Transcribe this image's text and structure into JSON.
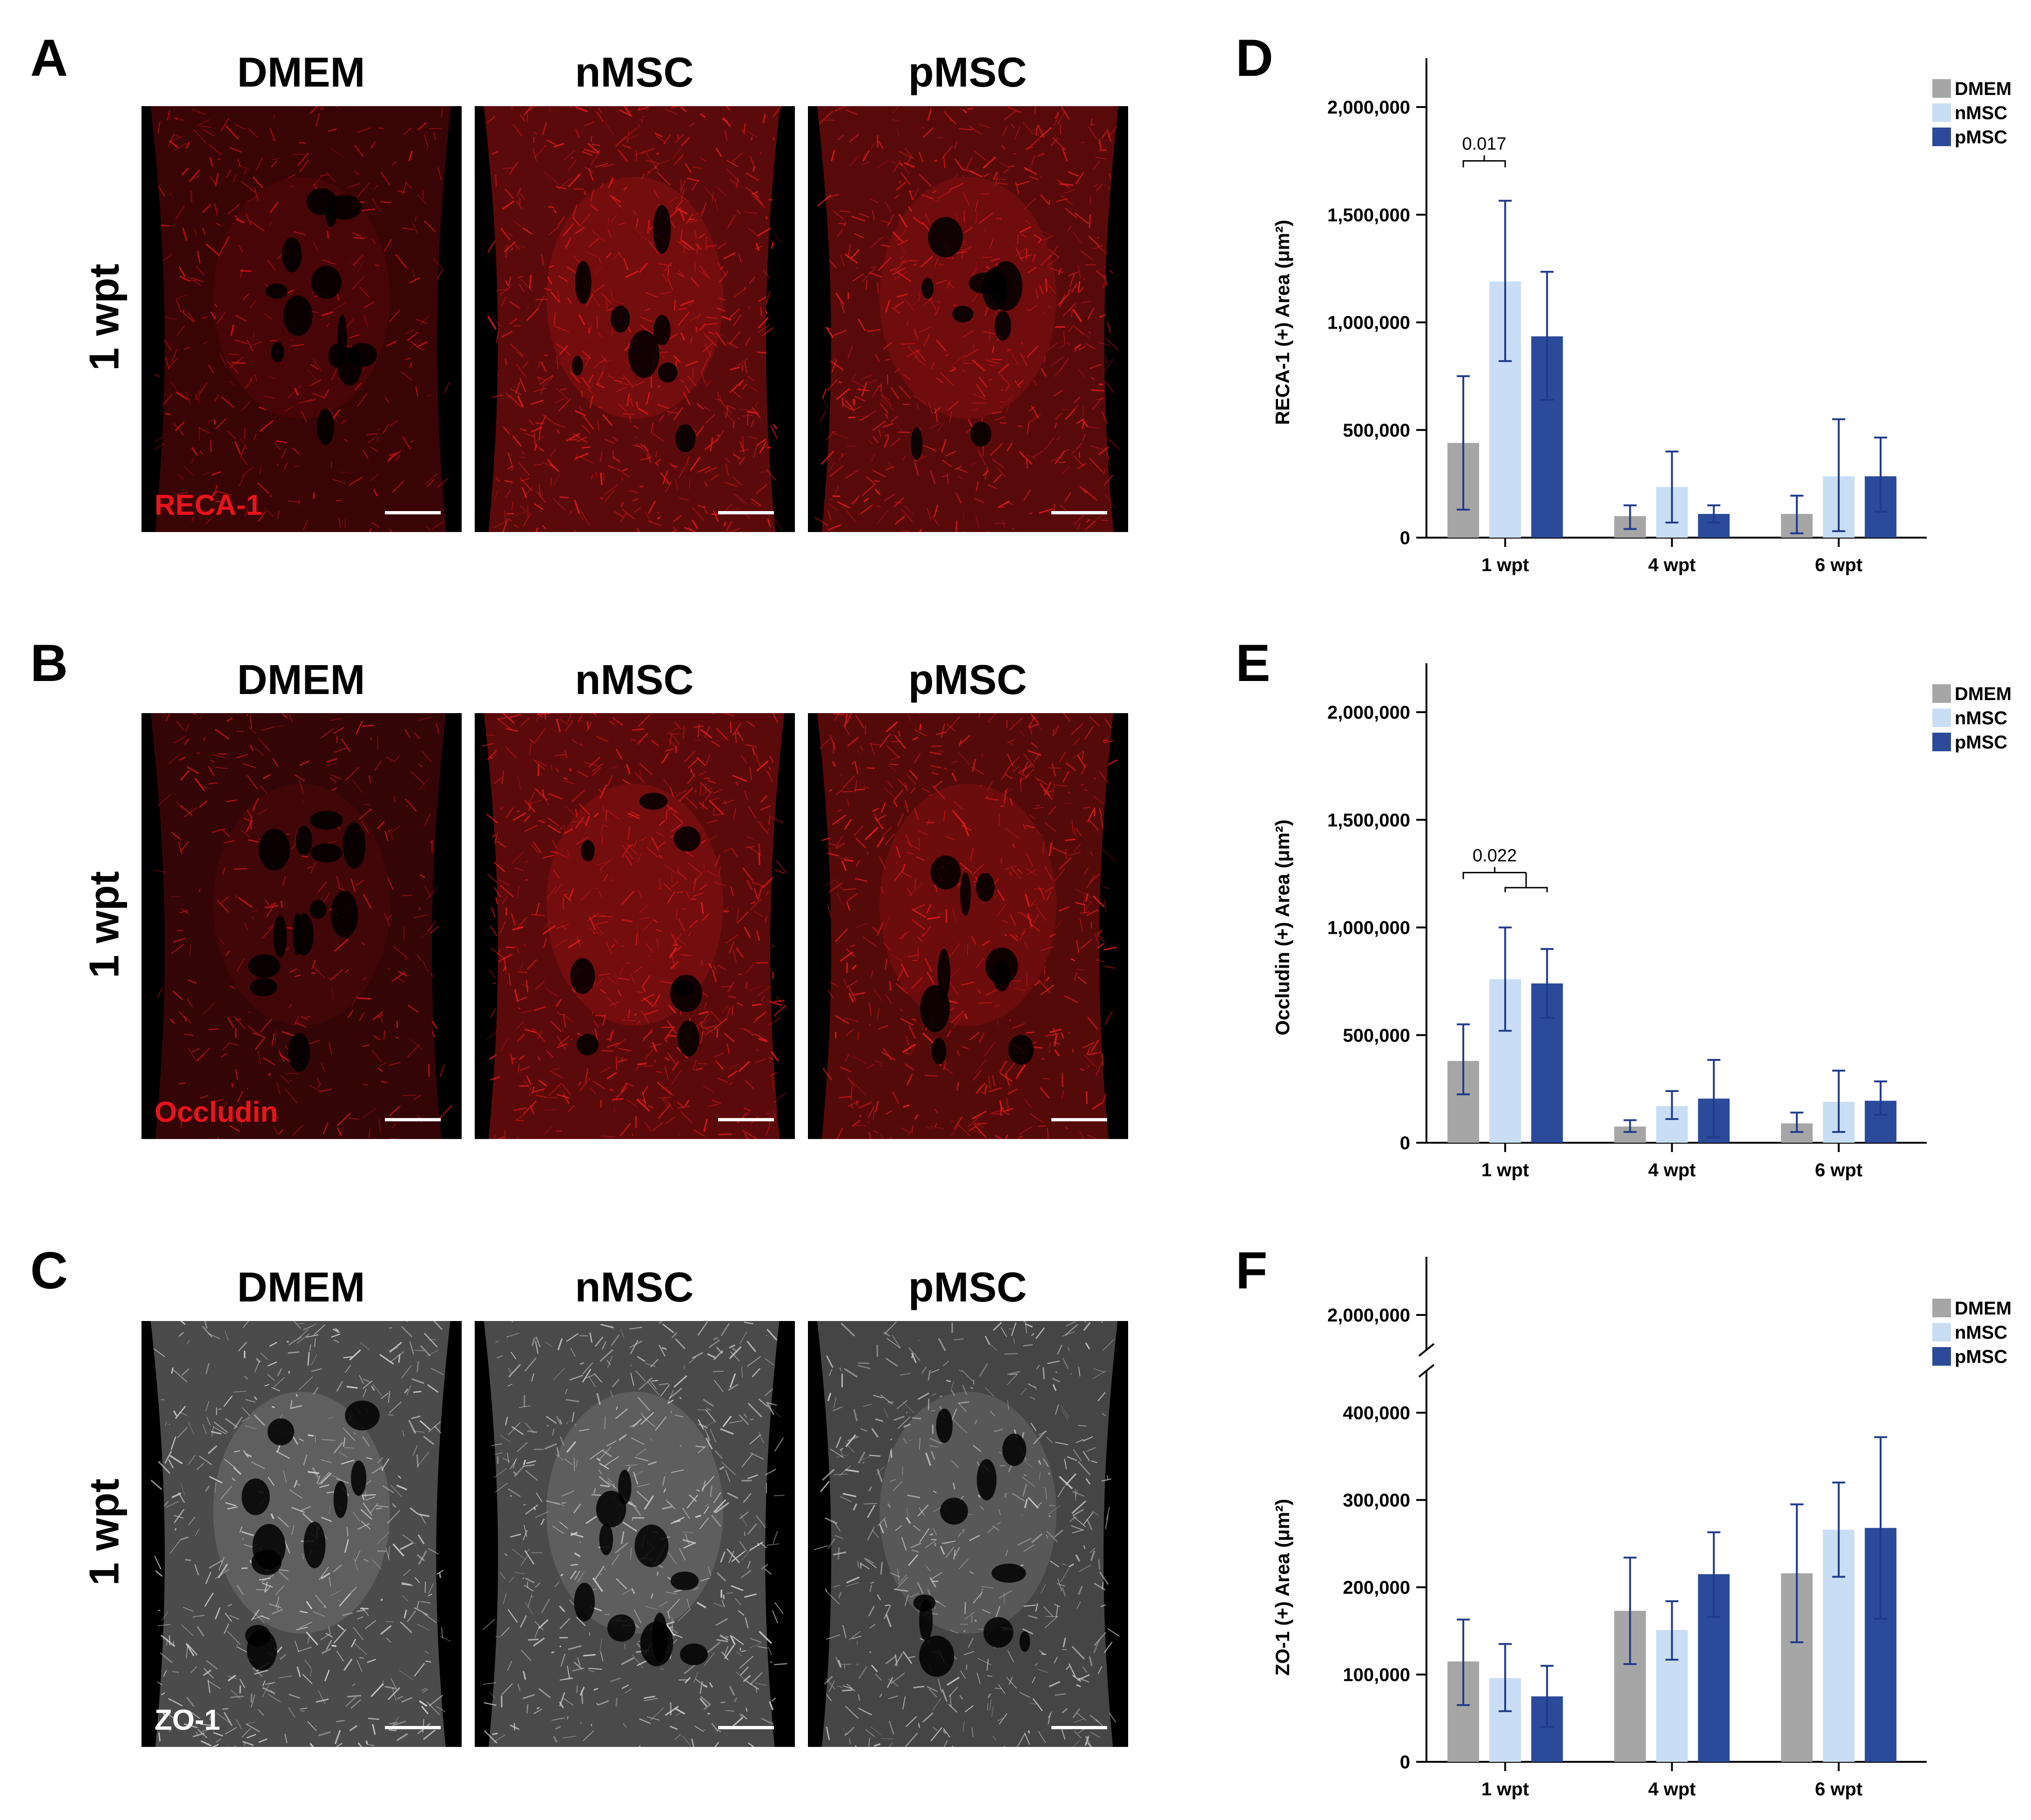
{
  "left_panels": [
    {
      "letter": "A",
      "columns": [
        "DMEM",
        "nMSC",
        "pMSC"
      ],
      "row_label": "1 wpt",
      "stain": "RECA-1",
      "stain_color": "#e8141a",
      "images": [
        {
          "group": "DMEM",
          "signal_color": "#d01016",
          "density": 0.55
        },
        {
          "group": "nMSC",
          "signal_color": "#e41a1c",
          "density": 1.0
        },
        {
          "group": "pMSC",
          "signal_color": "#e41a1c",
          "density": 0.95
        }
      ]
    },
    {
      "letter": "B",
      "columns": [
        "DMEM",
        "nMSC",
        "pMSC"
      ],
      "row_label": "1 wpt",
      "stain": "Occludin",
      "stain_color": "#e8141a",
      "images": [
        {
          "group": "DMEM",
          "signal_color": "#c8141a",
          "density": 0.5
        },
        {
          "group": "nMSC",
          "signal_color": "#e41a1c",
          "density": 1.0
        },
        {
          "group": "pMSC",
          "signal_color": "#e41a1c",
          "density": 0.9
        }
      ]
    },
    {
      "letter": "C",
      "columns": [
        "DMEM",
        "nMSC",
        "pMSC"
      ],
      "row_label": "1 wpt",
      "stain": "ZO-1",
      "stain_color": "#ffffff",
      "images": [
        {
          "group": "DMEM",
          "signal_color": "#d8d8d8",
          "density": 0.8
        },
        {
          "group": "nMSC",
          "signal_color": "#cfcfcf",
          "density": 0.85
        },
        {
          "group": "pMSC",
          "signal_color": "#c8c8c8",
          "density": 0.8
        }
      ]
    }
  ],
  "chart_data": [
    {
      "panel": "D",
      "type": "bar",
      "title": "",
      "xlabel": "",
      "ylabel": "RECA-1 (+) Area (μm²)",
      "categories": [
        "1 wpt",
        "4 wpt",
        "6 wpt"
      ],
      "ylim": [
        0,
        2000000
      ],
      "yticks": [
        0,
        500000,
        1000000,
        1500000,
        2000000
      ],
      "ytick_labels": [
        "0",
        "500,000",
        "1,000,000",
        "1,500,000",
        "2,000,000"
      ],
      "legend_position": "top-right",
      "series": [
        {
          "name": "DMEM",
          "color": "#a6a6a6",
          "values": [
            440000,
            100000,
            110000
          ],
          "err_low": [
            130000,
            40000,
            20000
          ],
          "err_high": [
            750000,
            150000,
            195000
          ]
        },
        {
          "name": "nMSC",
          "color": "#c9def5",
          "values": [
            1190000,
            235000,
            285000
          ],
          "err_low": [
            820000,
            70000,
            30000
          ],
          "err_high": [
            1565000,
            400000,
            550000
          ]
        },
        {
          "name": "pMSC",
          "color": "#2b4a9a",
          "values": [
            935000,
            110000,
            285000
          ],
          "err_low": [
            640000,
            70000,
            120000
          ],
          "err_high": [
            1235000,
            150000,
            465000
          ]
        }
      ],
      "annotations": [
        {
          "text": "0.017",
          "from_series": 0,
          "to_series": 1,
          "category": 0
        }
      ]
    },
    {
      "panel": "E",
      "type": "bar",
      "title": "",
      "xlabel": "",
      "ylabel": "Occludin (+) Area (μm²)",
      "categories": [
        "1 wpt",
        "4 wpt",
        "6 wpt"
      ],
      "ylim": [
        0,
        2000000
      ],
      "yticks": [
        0,
        500000,
        1000000,
        1500000,
        2000000
      ],
      "ytick_labels": [
        "0",
        "500,000",
        "1,000,000",
        "1,500,000",
        "2,000,000"
      ],
      "legend_position": "top-right",
      "series": [
        {
          "name": "DMEM",
          "color": "#a6a6a6",
          "values": [
            380000,
            75000,
            90000
          ],
          "err_low": [
            225000,
            50000,
            50000
          ],
          "err_high": [
            550000,
            105000,
            140000
          ]
        },
        {
          "name": "nMSC",
          "color": "#c9def5",
          "values": [
            760000,
            170000,
            190000
          ],
          "err_low": [
            520000,
            110000,
            50000
          ],
          "err_high": [
            1000000,
            240000,
            335000
          ]
        },
        {
          "name": "pMSC",
          "color": "#2b4a9a",
          "values": [
            740000,
            205000,
            195000
          ],
          "err_low": [
            580000,
            25000,
            130000
          ],
          "err_high": [
            900000,
            385000,
            285000
          ]
        }
      ],
      "annotations": [
        {
          "text": "0.022",
          "from_series": 0,
          "to_series": [
            1,
            2
          ],
          "category": 0
        }
      ]
    },
    {
      "panel": "F",
      "type": "bar",
      "title": "",
      "xlabel": "",
      "ylabel": "ZO-1 (+) Area (μm²)",
      "categories": [
        "1 wpt",
        "4 wpt",
        "6 wpt"
      ],
      "ylim": [
        0,
        400000
      ],
      "axis_break": {
        "upper_tick": 2000000,
        "upper_tick_label": "2,000,000"
      },
      "yticks": [
        0,
        100000,
        200000,
        300000,
        400000
      ],
      "ytick_labels": [
        "0",
        "100,000",
        "200,000",
        "300,000",
        "400,000"
      ],
      "legend_position": "top-right",
      "series": [
        {
          "name": "DMEM",
          "color": "#a6a6a6",
          "values": [
            115000,
            173000,
            216000
          ],
          "err_low": [
            65000,
            112000,
            137000
          ],
          "err_high": [
            163000,
            234000,
            295000
          ]
        },
        {
          "name": "nMSC",
          "color": "#c9def5",
          "values": [
            96000,
            151000,
            266000
          ],
          "err_low": [
            58000,
            117000,
            212000
          ],
          "err_high": [
            135000,
            184000,
            320000
          ]
        },
        {
          "name": "pMSC",
          "color": "#2b4a9a",
          "values": [
            75000,
            215000,
            268000
          ],
          "err_low": [
            40000,
            166000,
            164000
          ],
          "err_high": [
            110000,
            263000,
            372000
          ]
        }
      ],
      "annotations": []
    }
  ],
  "error_bar_color": "#1f3a8a"
}
